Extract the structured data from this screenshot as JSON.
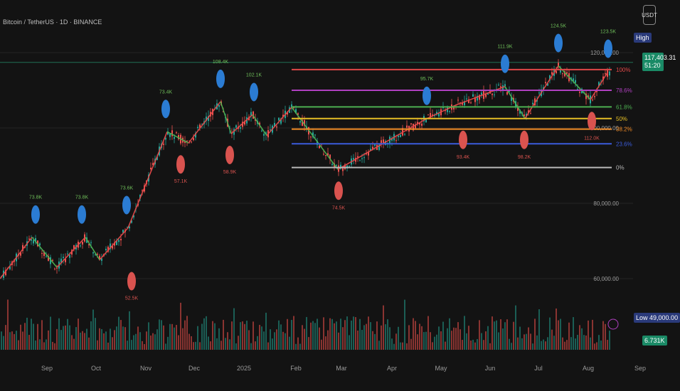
{
  "title": "Bitcoin / TetherUS · 1D · BINANCE",
  "currency": "USDT",
  "tags": {
    "high": "High",
    "price": "117,403.31",
    "countdown": "51:20",
    "low": "Low",
    "low_value": "49,000.00",
    "volume": "6.731K"
  },
  "chart_data": {
    "type": "candlestick",
    "x_ticks": [
      "Sep",
      "Oct",
      "Nov",
      "Dec",
      "2025",
      "Feb",
      "Mar",
      "Apr",
      "May",
      "Jun",
      "Jul",
      "Aug",
      "Sep"
    ],
    "y_ticks": [
      "120,000.00",
      "100,000.00",
      "80,000.00",
      "60,000.00"
    ],
    "fib_levels": [
      {
        "label": "100%",
        "value": 115500,
        "color": "#e04848"
      },
      {
        "label": "78.6%",
        "value": 110000,
        "color": "#b040c0"
      },
      {
        "label": "61.8%",
        "value": 105600,
        "color": "#4caf50"
      },
      {
        "label": "50%",
        "value": 102500,
        "color": "#e6c026"
      },
      {
        "label": "38.2%",
        "value": 99700,
        "color": "#f08a24"
      },
      {
        "label": "23.6%",
        "value": 95800,
        "color": "#3b5bdb"
      },
      {
        "label": "0%",
        "value": 89500,
        "color": "#b9b9b9"
      }
    ],
    "current_price": 117403.31,
    "zigzag": [
      [
        0,
        60000
      ],
      [
        45,
        71000
      ],
      [
        80,
        63000
      ],
      [
        120,
        71000
      ],
      [
        140,
        65000
      ],
      [
        180,
        73500
      ],
      [
        235,
        99000
      ],
      [
        265,
        96000
      ],
      [
        310,
        107000
      ],
      [
        325,
        98500
      ],
      [
        355,
        103500
      ],
      [
        375,
        98000
      ],
      [
        410,
        105500
      ],
      [
        475,
        89000
      ],
      [
        600,
        102500
      ],
      [
        640,
        106000
      ],
      [
        710,
        111000
      ],
      [
        738,
        102500
      ],
      [
        785,
        116500
      ],
      [
        830,
        107500
      ],
      [
        855,
        115000
      ]
    ],
    "swing_labels": [
      {
        "text": "73.8K",
        "kind": "high",
        "x": 50,
        "y": 71000
      },
      {
        "text": "73.8K",
        "kind": "high",
        "x": 115,
        "y": 71000
      },
      {
        "text": "73.6K",
        "kind": "high",
        "x": 178,
        "y": 73500
      },
      {
        "text": "73.4K",
        "kind": "high",
        "x": 233,
        "y": 99000
      },
      {
        "text": "108.4K",
        "kind": "high",
        "x": 310,
        "y": 107000
      },
      {
        "text": "102.1K",
        "kind": "high",
        "x": 357,
        "y": 103500
      },
      {
        "text": "95.7K",
        "kind": "high",
        "x": 600,
        "y": 102500
      },
      {
        "text": "111.9K",
        "kind": "high",
        "x": 710,
        "y": 111000
      },
      {
        "text": "124.5K",
        "kind": "high",
        "x": 785,
        "y": 116500
      },
      {
        "text": "123.5K",
        "kind": "high",
        "x": 855,
        "y": 115000
      },
      {
        "text": "52.5K",
        "kind": "low",
        "x": 185,
        "y": 65000
      },
      {
        "text": "57.1K",
        "kind": "low",
        "x": 254,
        "y": 96000
      },
      {
        "text": "58.9K",
        "kind": "low",
        "x": 323,
        "y": 98500
      },
      {
        "text": "74.5K",
        "kind": "low",
        "x": 476,
        "y": 89000
      },
      {
        "text": "93.4K",
        "kind": "low",
        "x": 651,
        "y": 102500
      },
      {
        "text": "98.2K",
        "kind": "low",
        "x": 737,
        "y": 102500
      },
      {
        "text": "112.0K",
        "kind": "low",
        "x": 832,
        "y": 107500
      }
    ]
  }
}
